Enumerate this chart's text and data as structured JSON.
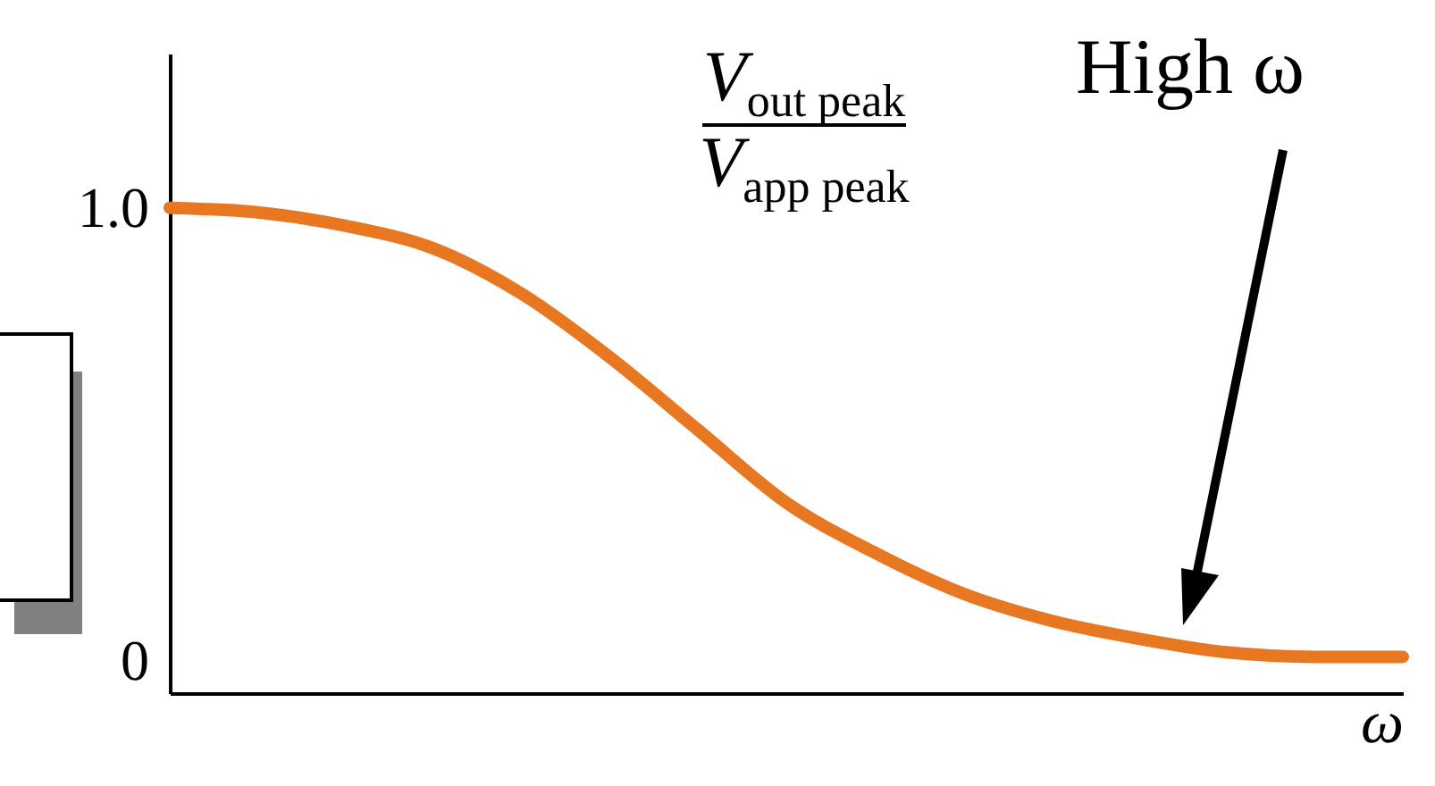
{
  "chart_data": {
    "type": "line",
    "xlabel": "ω",
    "ylabel": "V$_{out peak}$ V$_{app peak}$",
    "annotations": [
      "High ω"
    ],
    "categories": [
      null,
      null,
      null,
      null,
      null,
      null,
      null,
      null,
      null,
      null,
      null,
      null,
      null,
      null,
      null
    ],
    "series": [
      {
        "color": "#e87722",
        "values": [
          1.0,
          0.99,
          0.96,
          0.91,
          0.81,
          0.67,
          0.51,
          0.35,
          0.24,
          0.15,
          0.09,
          0.05,
          0.02,
          0.01,
          0.01
        ]
      }
    ],
    "ylim": [
      -0.07,
      1.34
    ],
    "yticks": [
      0,
      {
        "value": 1,
        "label": "1.0"
      }
    ]
  }
}
